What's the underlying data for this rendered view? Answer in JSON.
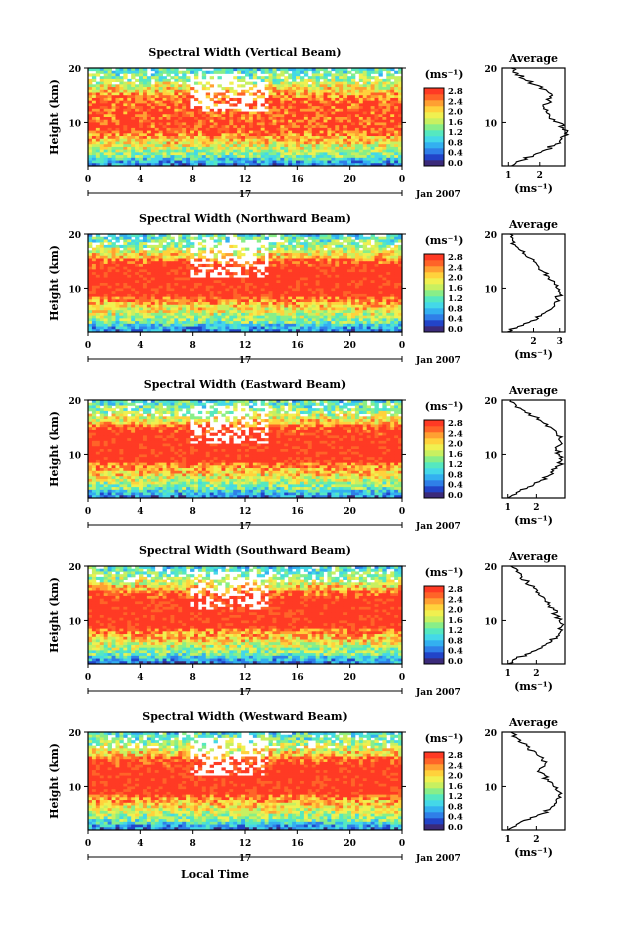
{
  "figure": {
    "footer_xlabel": "Local Time",
    "colorbar_unit": "(ms⁻¹)",
    "colorbar_ticks": [
      "0.0",
      "0.4",
      "0.8",
      "1.2",
      "1.6",
      "2.0",
      "2.4",
      "2.8"
    ],
    "colorbar_colors": [
      "#3b2a7a",
      "#2244c8",
      "#2f7fe8",
      "#33b0f0",
      "#44d8e8",
      "#55e8c0",
      "#88ee88",
      "#c8f060",
      "#f0f050",
      "#ffd23c",
      "#ffa032",
      "#ff6428",
      "#ff3a24"
    ],
    "time_ticks": [
      "0",
      "4",
      "8",
      "12",
      "16",
      "20",
      "0"
    ],
    "date_label": "17",
    "month_label": "Jan 2007",
    "height_label": "Height (km)",
    "height_ticks": [
      "20",
      "10"
    ],
    "average_title": "Average",
    "average_ylabel_ticks": [
      "20",
      "10"
    ],
    "average_xlabel": "(ms⁻¹)"
  },
  "chart_data": [
    {
      "type": "heatmap",
      "title": "Spectral Width (Vertical Beam)",
      "xlabel": "",
      "ylabel": "Height (km)",
      "xlim": [
        0,
        24
      ],
      "ylim": [
        2,
        20
      ],
      "colorbar_range": [
        0.0,
        2.8
      ],
      "average_profile": {
        "xticks": [
          "1",
          "2"
        ],
        "xlim": [
          0.8,
          2.8
        ],
        "height": [
          2,
          3,
          4,
          5,
          6,
          7,
          8,
          9,
          10,
          11,
          12,
          13,
          14,
          15,
          16,
          17,
          18,
          19,
          20
        ],
        "value": [
          1.1,
          1.4,
          1.8,
          2.2,
          2.5,
          2.7,
          2.8,
          2.75,
          2.6,
          2.3,
          2.2,
          2.1,
          2.3,
          2.4,
          2.2,
          1.8,
          1.5,
          1.3,
          1.1
        ]
      }
    },
    {
      "type": "heatmap",
      "title": "Spectral Width (Northward Beam)",
      "xlabel": "",
      "ylabel": "Height (km)",
      "xlim": [
        0,
        24
      ],
      "ylim": [
        2,
        20
      ],
      "colorbar_range": [
        0.0,
        2.8
      ],
      "average_profile": {
        "xticks": [
          "2",
          "3"
        ],
        "xlim": [
          0.8,
          3.2
        ],
        "height": [
          2,
          3,
          4,
          5,
          6,
          7,
          8,
          9,
          10,
          11,
          12,
          13,
          14,
          15,
          16,
          17,
          18,
          19,
          20
        ],
        "value": [
          1.0,
          1.4,
          1.9,
          2.3,
          2.6,
          2.8,
          2.9,
          3.0,
          2.9,
          2.8,
          2.6,
          2.4,
          2.2,
          2.0,
          1.7,
          1.5,
          1.3,
          1.2,
          1.1
        ]
      }
    },
    {
      "type": "heatmap",
      "title": "Spectral Width (Eastward Beam)",
      "xlabel": "",
      "ylabel": "Height (km)",
      "xlim": [
        0,
        24
      ],
      "ylim": [
        2,
        20
      ],
      "colorbar_range": [
        0.0,
        2.8
      ],
      "average_profile": {
        "xticks": [
          "1",
          "2"
        ],
        "xlim": [
          0.8,
          3.0
        ],
        "height": [
          2,
          3,
          4,
          5,
          6,
          7,
          8,
          9,
          10,
          11,
          12,
          13,
          14,
          15,
          16,
          17,
          18,
          19,
          20
        ],
        "value": [
          1.0,
          1.3,
          1.7,
          2.1,
          2.4,
          2.6,
          2.8,
          2.9,
          2.8,
          2.7,
          2.9,
          2.8,
          2.7,
          2.5,
          2.2,
          1.9,
          1.6,
          1.3,
          1.1
        ]
      }
    },
    {
      "type": "heatmap",
      "title": "Spectral Width (Southward Beam)",
      "xlabel": "",
      "ylabel": "Height (km)",
      "xlim": [
        0,
        24
      ],
      "ylim": [
        2,
        20
      ],
      "colorbar_range": [
        0.0,
        2.8
      ],
      "average_profile": {
        "xticks": [
          "1",
          "2"
        ],
        "xlim": [
          0.8,
          3.0
        ],
        "height": [
          2,
          3,
          4,
          5,
          6,
          7,
          8,
          9,
          10,
          11,
          12,
          13,
          14,
          15,
          16,
          17,
          18,
          19,
          20
        ],
        "value": [
          1.0,
          1.3,
          1.8,
          2.2,
          2.5,
          2.7,
          2.85,
          2.9,
          2.8,
          2.7,
          2.6,
          2.4,
          2.3,
          2.1,
          1.9,
          1.7,
          1.5,
          1.3,
          1.1
        ]
      }
    },
    {
      "type": "heatmap",
      "title": "Spectral Width (Westward Beam)",
      "xlabel": "Local Time",
      "ylabel": "Height (km)",
      "xlim": [
        0,
        24
      ],
      "ylim": [
        2,
        20
      ],
      "colorbar_range": [
        0.0,
        2.8
      ],
      "average_profile": {
        "xticks": [
          "1",
          "2"
        ],
        "xlim": [
          0.8,
          3.0
        ],
        "height": [
          2,
          3,
          4,
          5,
          6,
          7,
          8,
          9,
          10,
          11,
          12,
          13,
          14,
          15,
          16,
          17,
          18,
          19,
          20
        ],
        "value": [
          1.0,
          1.3,
          1.8,
          2.2,
          2.5,
          2.7,
          2.85,
          2.8,
          2.6,
          2.4,
          2.3,
          2.1,
          2.3,
          2.2,
          2.0,
          1.7,
          1.5,
          1.3,
          1.1
        ]
      }
    }
  ]
}
